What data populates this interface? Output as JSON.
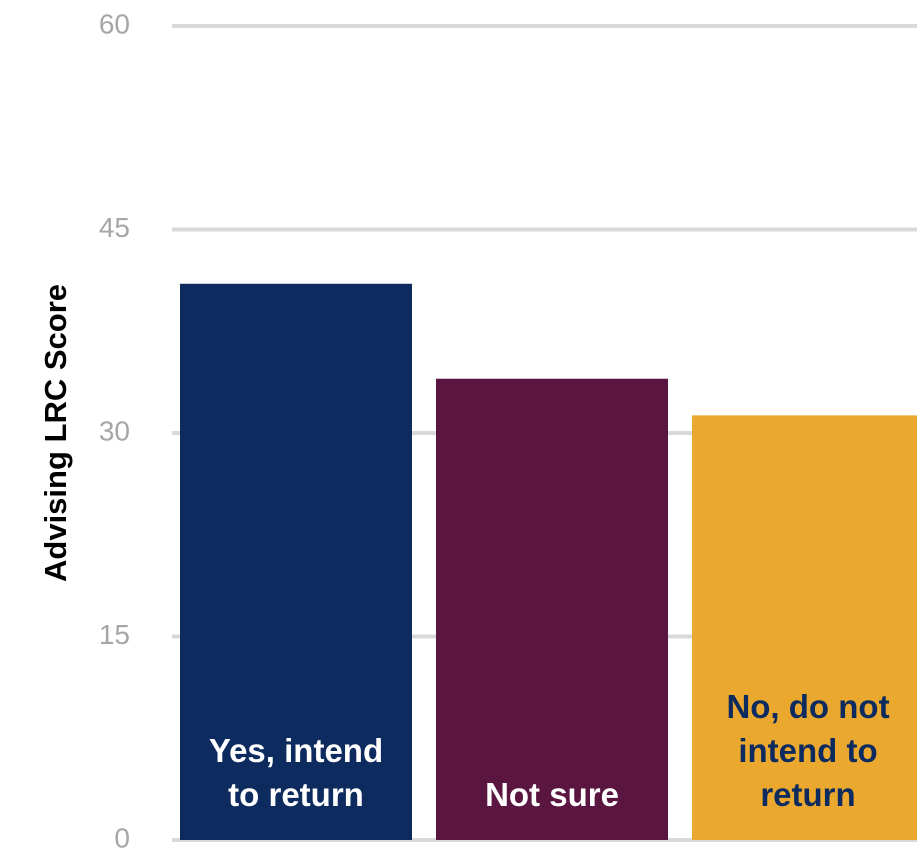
{
  "chart_data": {
    "type": "bar",
    "title": "",
    "xlabel": "",
    "ylabel": "Advising LRC Score",
    "ylim": [
      0,
      60
    ],
    "yticks": [
      0,
      15,
      30,
      45,
      60
    ],
    "grid": true,
    "categories": [
      "Yes, intend to return",
      "Not sure",
      "No, do not intend to return"
    ],
    "category_lines": [
      [
        "Yes, intend",
        "to return"
      ],
      [
        "Not sure"
      ],
      [
        "No, do not",
        "intend to",
        "return"
      ]
    ],
    "values": [
      41,
      34,
      31.3
    ],
    "colors": [
      "#0d2b5e",
      "#5a1540",
      "#eba82e"
    ],
    "label_colors": [
      "#ffffff",
      "#ffffff",
      "#0d2b5e"
    ]
  }
}
